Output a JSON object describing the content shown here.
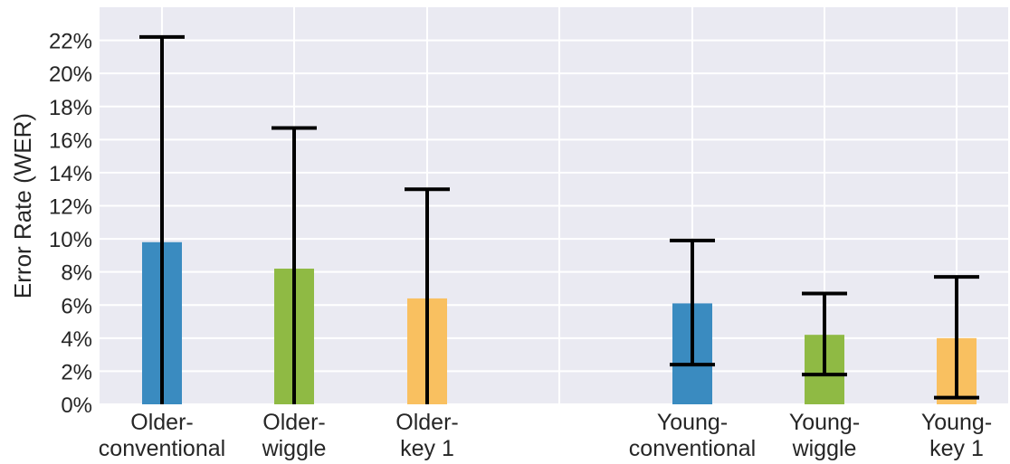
{
  "chart_data": {
    "type": "bar",
    "title": "",
    "xlabel": "",
    "ylabel": "Error Rate (WER)",
    "ylim": [
      0,
      0.24
    ],
    "yticks": [
      0,
      0.02,
      0.04,
      0.06,
      0.08,
      0.1,
      0.12,
      0.14,
      0.16,
      0.18,
      0.2,
      0.22
    ],
    "ytick_labels": [
      "0%",
      "2%",
      "4%",
      "6%",
      "8%",
      "10%",
      "12%",
      "14%",
      "16%",
      "18%",
      "20%",
      "22%"
    ],
    "grid": true,
    "categories": [
      {
        "line1": "Older-",
        "line2": "conventional"
      },
      {
        "line1": "Older-",
        "line2": "wiggle"
      },
      {
        "line1": "Older-",
        "line2": "key 1"
      },
      {
        "line1": "Young-",
        "line2": "conventional"
      },
      {
        "line1": "Young-",
        "line2": "wiggle"
      },
      {
        "line1": "Young-",
        "line2": "key 1"
      }
    ],
    "values": [
      0.098,
      0.082,
      0.064,
      0.061,
      0.042,
      0.04
    ],
    "error_low": [
      0.0,
      0.0,
      0.0,
      0.024,
      0.018,
      0.004
    ],
    "error_high": [
      0.222,
      0.167,
      0.13,
      0.099,
      0.067,
      0.077
    ],
    "colors": [
      "#3a8bc0",
      "#8fba44",
      "#f9c060",
      "#3a8bc0",
      "#8fba44",
      "#f9c060"
    ],
    "background_color": "#eaeaf2",
    "grid_color": "#ffffff",
    "error_bar_color": "#000000"
  }
}
